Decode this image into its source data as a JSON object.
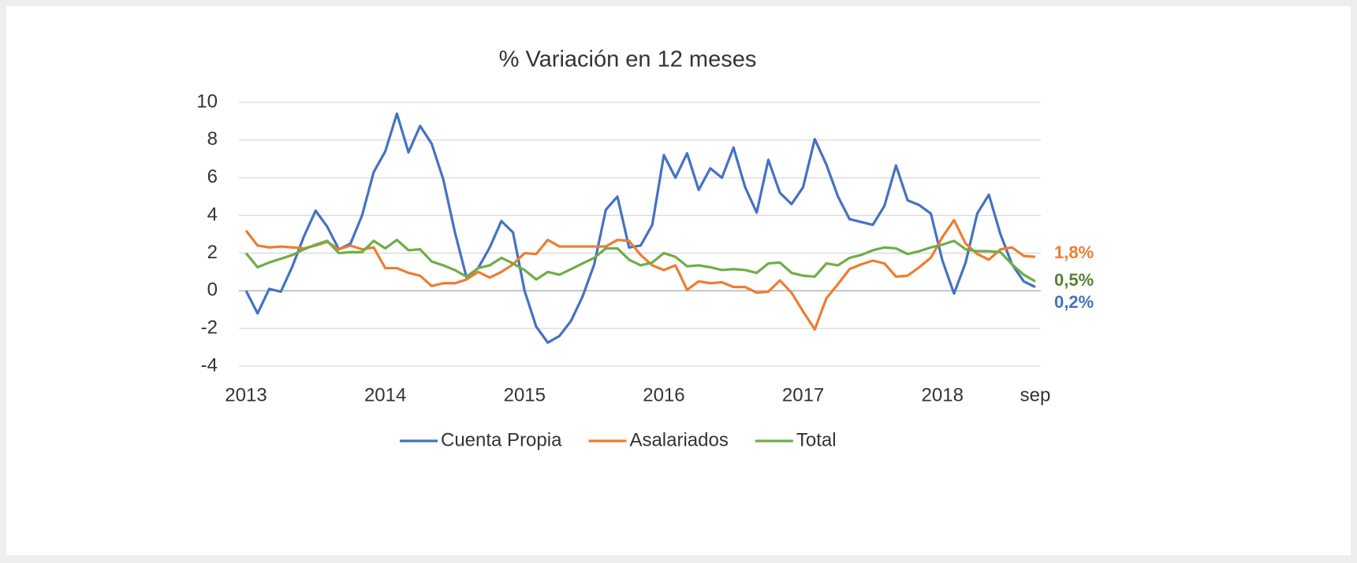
{
  "chart_data": {
    "type": "line",
    "title": "% Variación en 12 meses",
    "categories": [
      "2013",
      null,
      null,
      null,
      null,
      null,
      null,
      null,
      null,
      null,
      null,
      null,
      "2014",
      null,
      null,
      null,
      null,
      null,
      null,
      null,
      null,
      null,
      null,
      null,
      "2015",
      null,
      null,
      null,
      null,
      null,
      null,
      null,
      null,
      null,
      null,
      null,
      "2016",
      null,
      null,
      null,
      null,
      null,
      null,
      null,
      null,
      null,
      null,
      null,
      "2017",
      null,
      null,
      null,
      null,
      null,
      null,
      null,
      null,
      null,
      null,
      null,
      "2018",
      null,
      null,
      null,
      null,
      null,
      null,
      null,
      "sep"
    ],
    "series": [
      {
        "name": "Cuenta Propia",
        "color": "#4472c4",
        "end_label": "0,2%",
        "end_label_color": "#4472c4",
        "values": [
          0,
          -1.2,
          0.1,
          -0.05,
          1.3,
          2.9,
          4.25,
          3.4,
          2.2,
          2.5,
          4.0,
          6.3,
          7.4,
          9.4,
          7.35,
          8.75,
          7.8,
          5.9,
          3.1,
          0.7,
          1.2,
          2.3,
          3.7,
          3.1,
          0.0,
          -1.9,
          -2.75,
          -2.4,
          -1.6,
          -0.3,
          1.4,
          4.3,
          5.0,
          2.3,
          2.4,
          3.5,
          7.2,
          6.0,
          7.3,
          5.35,
          6.5,
          6.0,
          7.6,
          5.5,
          4.15,
          6.95,
          5.2,
          4.6,
          5.5,
          8.05,
          6.7,
          5.0,
          3.8,
          3.65,
          3.5,
          4.5,
          6.65,
          4.8,
          4.55,
          4.1,
          1.6,
          -0.15,
          1.5,
          4.1,
          5.1,
          3.0,
          1.4,
          0.5,
          0.2
        ]
      },
      {
        "name": "Asalariados",
        "color": "#ed7d31",
        "end_label": "1,8%",
        "end_label_color": "#ed7d31",
        "values": [
          3.2,
          2.4,
          2.3,
          2.35,
          2.3,
          2.25,
          2.4,
          2.6,
          2.2,
          2.4,
          2.2,
          2.3,
          1.2,
          1.2,
          0.95,
          0.8,
          0.25,
          0.4,
          0.4,
          0.6,
          1.0,
          0.7,
          1.0,
          1.4,
          2.0,
          1.95,
          2.7,
          2.35,
          2.35,
          2.35,
          2.35,
          2.35,
          2.7,
          2.65,
          1.9,
          1.35,
          1.1,
          1.35,
          0.05,
          0.5,
          0.4,
          0.45,
          0.2,
          0.2,
          -0.1,
          -0.05,
          0.55,
          -0.1,
          -1.1,
          -2.05,
          -0.4,
          0.35,
          1.15,
          1.4,
          1.6,
          1.45,
          0.75,
          0.8,
          1.25,
          1.75,
          2.85,
          3.75,
          2.5,
          1.95,
          1.65,
          2.2,
          2.3,
          1.85,
          1.8
        ]
      },
      {
        "name": "Total",
        "color": "#70ad47",
        "end_label": "0,5%",
        "end_label_color": "#548235",
        "values": [
          2.0,
          1.25,
          1.5,
          1.7,
          1.9,
          2.2,
          2.45,
          2.65,
          2.0,
          2.05,
          2.05,
          2.65,
          2.25,
          2.7,
          2.15,
          2.2,
          1.55,
          1.35,
          1.1,
          0.75,
          1.2,
          1.35,
          1.75,
          1.45,
          1.1,
          0.6,
          1.0,
          0.85,
          1.15,
          1.45,
          1.75,
          2.25,
          2.25,
          1.65,
          1.35,
          1.5,
          2.0,
          1.8,
          1.3,
          1.35,
          1.25,
          1.1,
          1.15,
          1.1,
          0.95,
          1.45,
          1.5,
          0.95,
          0.8,
          0.75,
          1.45,
          1.35,
          1.75,
          1.9,
          2.15,
          2.3,
          2.25,
          1.95,
          2.1,
          2.3,
          2.45,
          2.65,
          2.2,
          2.1,
          2.1,
          2.05,
          1.4,
          0.85,
          0.5
        ]
      }
    ],
    "ylim": [
      -4,
      10
    ],
    "yticks": [
      -4,
      -2,
      0,
      2,
      4,
      6,
      8,
      10
    ],
    "grid": true
  }
}
